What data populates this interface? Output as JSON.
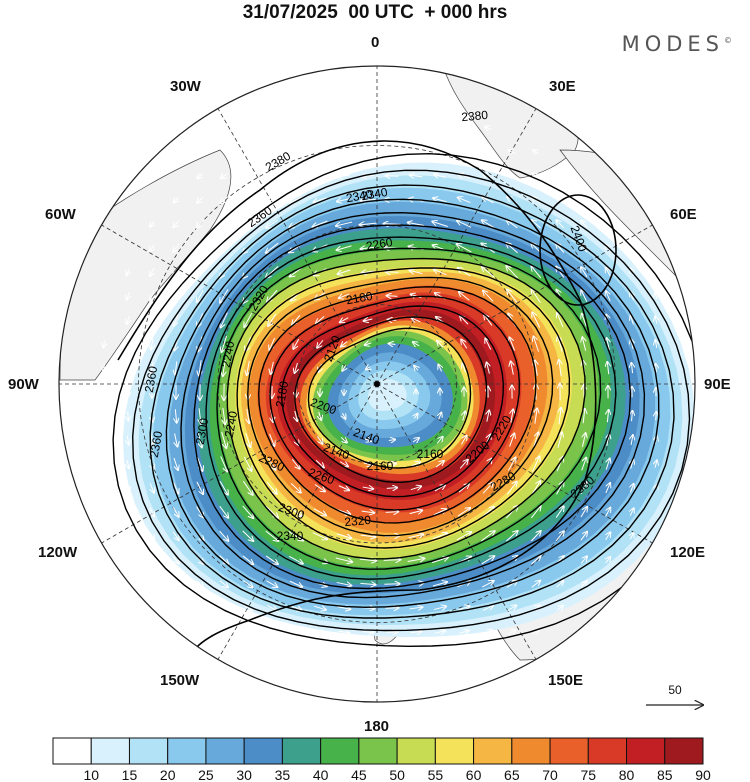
{
  "title": {
    "date": "31/07/2025",
    "time": "00 UTC",
    "lead": "+ 000 hrs"
  },
  "brand": {
    "name": "MODES",
    "mark": "©"
  },
  "longitude_labels": {
    "n": "0",
    "s": "180",
    "e": "90E",
    "w": "90W",
    "ne30": "30E",
    "ne60": "60E",
    "se120": "120E",
    "se150": "150E",
    "nw30": "30W",
    "nw60": "60W",
    "sw120": "120W",
    "sw150": "150W"
  },
  "contour_labels": [
    "2380",
    "2360",
    "2340",
    "2320",
    "2300",
    "2280",
    "2260",
    "2240",
    "2220",
    "2200",
    "2180",
    "2160",
    "2140",
    "2120",
    "2400",
    "2360",
    "2340",
    "2380",
    "2380",
    "2360",
    "2260",
    "2240",
    "2320",
    "2340",
    "2300",
    "2280",
    "2180",
    "2160",
    "2200",
    "2140"
  ],
  "vector_reference": {
    "value": "50",
    "icon": "arrow-right-icon"
  },
  "colorbar": {
    "labels": [
      "10",
      "15",
      "20",
      "25",
      "30",
      "35",
      "40",
      "45",
      "50",
      "55",
      "60",
      "65",
      "70",
      "75",
      "80",
      "85",
      "90"
    ],
    "colors": [
      "#ffffff",
      "#d8f1fc",
      "#b2e2f6",
      "#8ac9ee",
      "#67a9db",
      "#4c8dc7",
      "#3ca08c",
      "#48b24a",
      "#7bc44b",
      "#c7dc52",
      "#f4e35a",
      "#f5b643",
      "#f08a2e",
      "#e9602a",
      "#d93a27",
      "#c21f24",
      "#9e1a1f"
    ]
  },
  "colors": {
    "land": "#f1f1f1",
    "coast": "#444444",
    "contour": "#000000",
    "vector": "#ffffff"
  }
}
